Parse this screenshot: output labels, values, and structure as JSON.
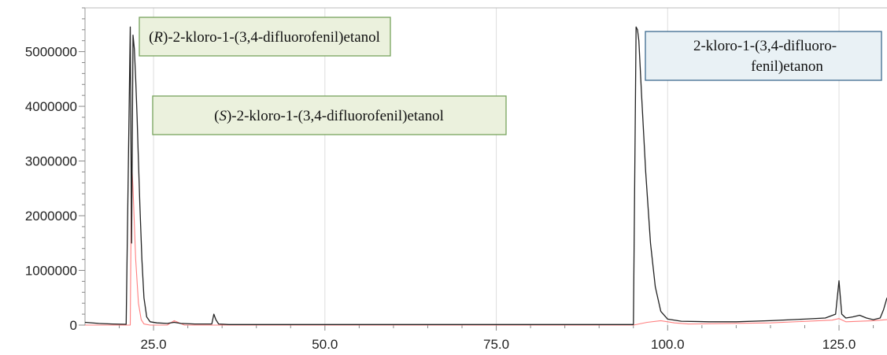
{
  "chart_data": {
    "type": "line",
    "title": "",
    "xlabel": "",
    "ylabel": "",
    "xlim": [
      15.0,
      132.0
    ],
    "ylim": [
      0,
      5800000
    ],
    "grid": "vertical",
    "x_ticks": [
      25.0,
      50.0,
      75.0,
      100.0,
      125.0
    ],
    "x_tick_labels": [
      "25.0",
      "50.0",
      "75.0",
      "100.0",
      "125.0"
    ],
    "y_ticks": [
      0,
      1000000,
      2000000,
      3000000,
      4000000,
      5000000
    ],
    "y_tick_labels": [
      "0",
      "1000000",
      "2000000",
      "3000000",
      "4000000",
      "5000000"
    ],
    "series": [
      {
        "color": "#222222",
        "x": [
          15.0,
          17.0,
          19.0,
          21.0,
          21.6,
          21.8,
          22.0,
          22.2,
          22.4,
          22.6,
          22.8,
          23.0,
          23.3,
          23.6,
          24.0,
          24.5,
          25.5,
          27.0,
          28.0,
          29.0,
          31.0,
          33.5,
          33.8,
          34.1,
          34.5,
          36.0,
          45.0,
          55.0,
          65.0,
          75.0,
          85.0,
          90.0,
          95.0,
          95.4,
          95.6,
          95.8,
          96.2,
          96.8,
          97.5,
          98.2,
          99.0,
          100.0,
          102.0,
          106.0,
          110.0,
          115.0,
          120.0,
          123.0,
          124.5,
          125.0,
          125.4,
          126.0,
          127.0,
          128.0,
          129.0,
          130.0,
          131.0,
          131.5,
          132.0
        ],
        "y": [
          50000,
          30000,
          20000,
          15000,
          5450000,
          1500000,
          5300000,
          5050000,
          4500000,
          3800000,
          3000000,
          2200000,
          1200000,
          500000,
          150000,
          60000,
          40000,
          30000,
          50000,
          30000,
          20000,
          20000,
          200000,
          100000,
          20000,
          10000,
          10000,
          10000,
          10000,
          10000,
          10000,
          10000,
          10000,
          5450000,
          5400000,
          5200000,
          4200000,
          2800000,
          1500000,
          700000,
          250000,
          110000,
          70000,
          60000,
          60000,
          80000,
          110000,
          130000,
          200000,
          810000,
          200000,
          130000,
          150000,
          180000,
          130000,
          100000,
          130000,
          280000,
          500000
        ]
      },
      {
        "color": "#ff8080",
        "x": [
          15.0,
          21.6,
          21.8,
          22.0,
          22.4,
          22.8,
          23.2,
          23.6,
          24.5,
          27.0,
          28.0,
          29.5,
          40.0,
          60.0,
          80.0,
          94.0,
          95.0,
          97.0,
          99.0,
          101.0,
          103.0,
          115.0,
          124.0,
          125.0,
          126.0,
          130.0,
          132.0
        ],
        "y": [
          0,
          0,
          3000000,
          2500000,
          1200000,
          400000,
          100000,
          20000,
          0,
          0,
          80000,
          0,
          0,
          0,
          0,
          0,
          0,
          50000,
          80000,
          40000,
          20000,
          40000,
          90000,
          120000,
          60000,
          80000,
          100000
        ]
      }
    ],
    "annotations": [
      {
        "prefix": "(",
        "italic": "R",
        "rest": ")-2-kloro-1-(3,4-difluorofenil)etanol",
        "fill": "#ebf1dd",
        "stroke": "#77a35d"
      },
      {
        "prefix": "(",
        "italic": "S",
        "rest": ")-2-kloro-1-(3,4-difluorofenil)etanol",
        "fill": "#ebf1dd",
        "stroke": "#77a35d"
      },
      {
        "line1": "2-kloro-1-(3,4-difluoro-",
        "line2": "fenil)etanon",
        "fill": "#e9f1f5",
        "stroke": "#3d6a8e"
      }
    ]
  }
}
